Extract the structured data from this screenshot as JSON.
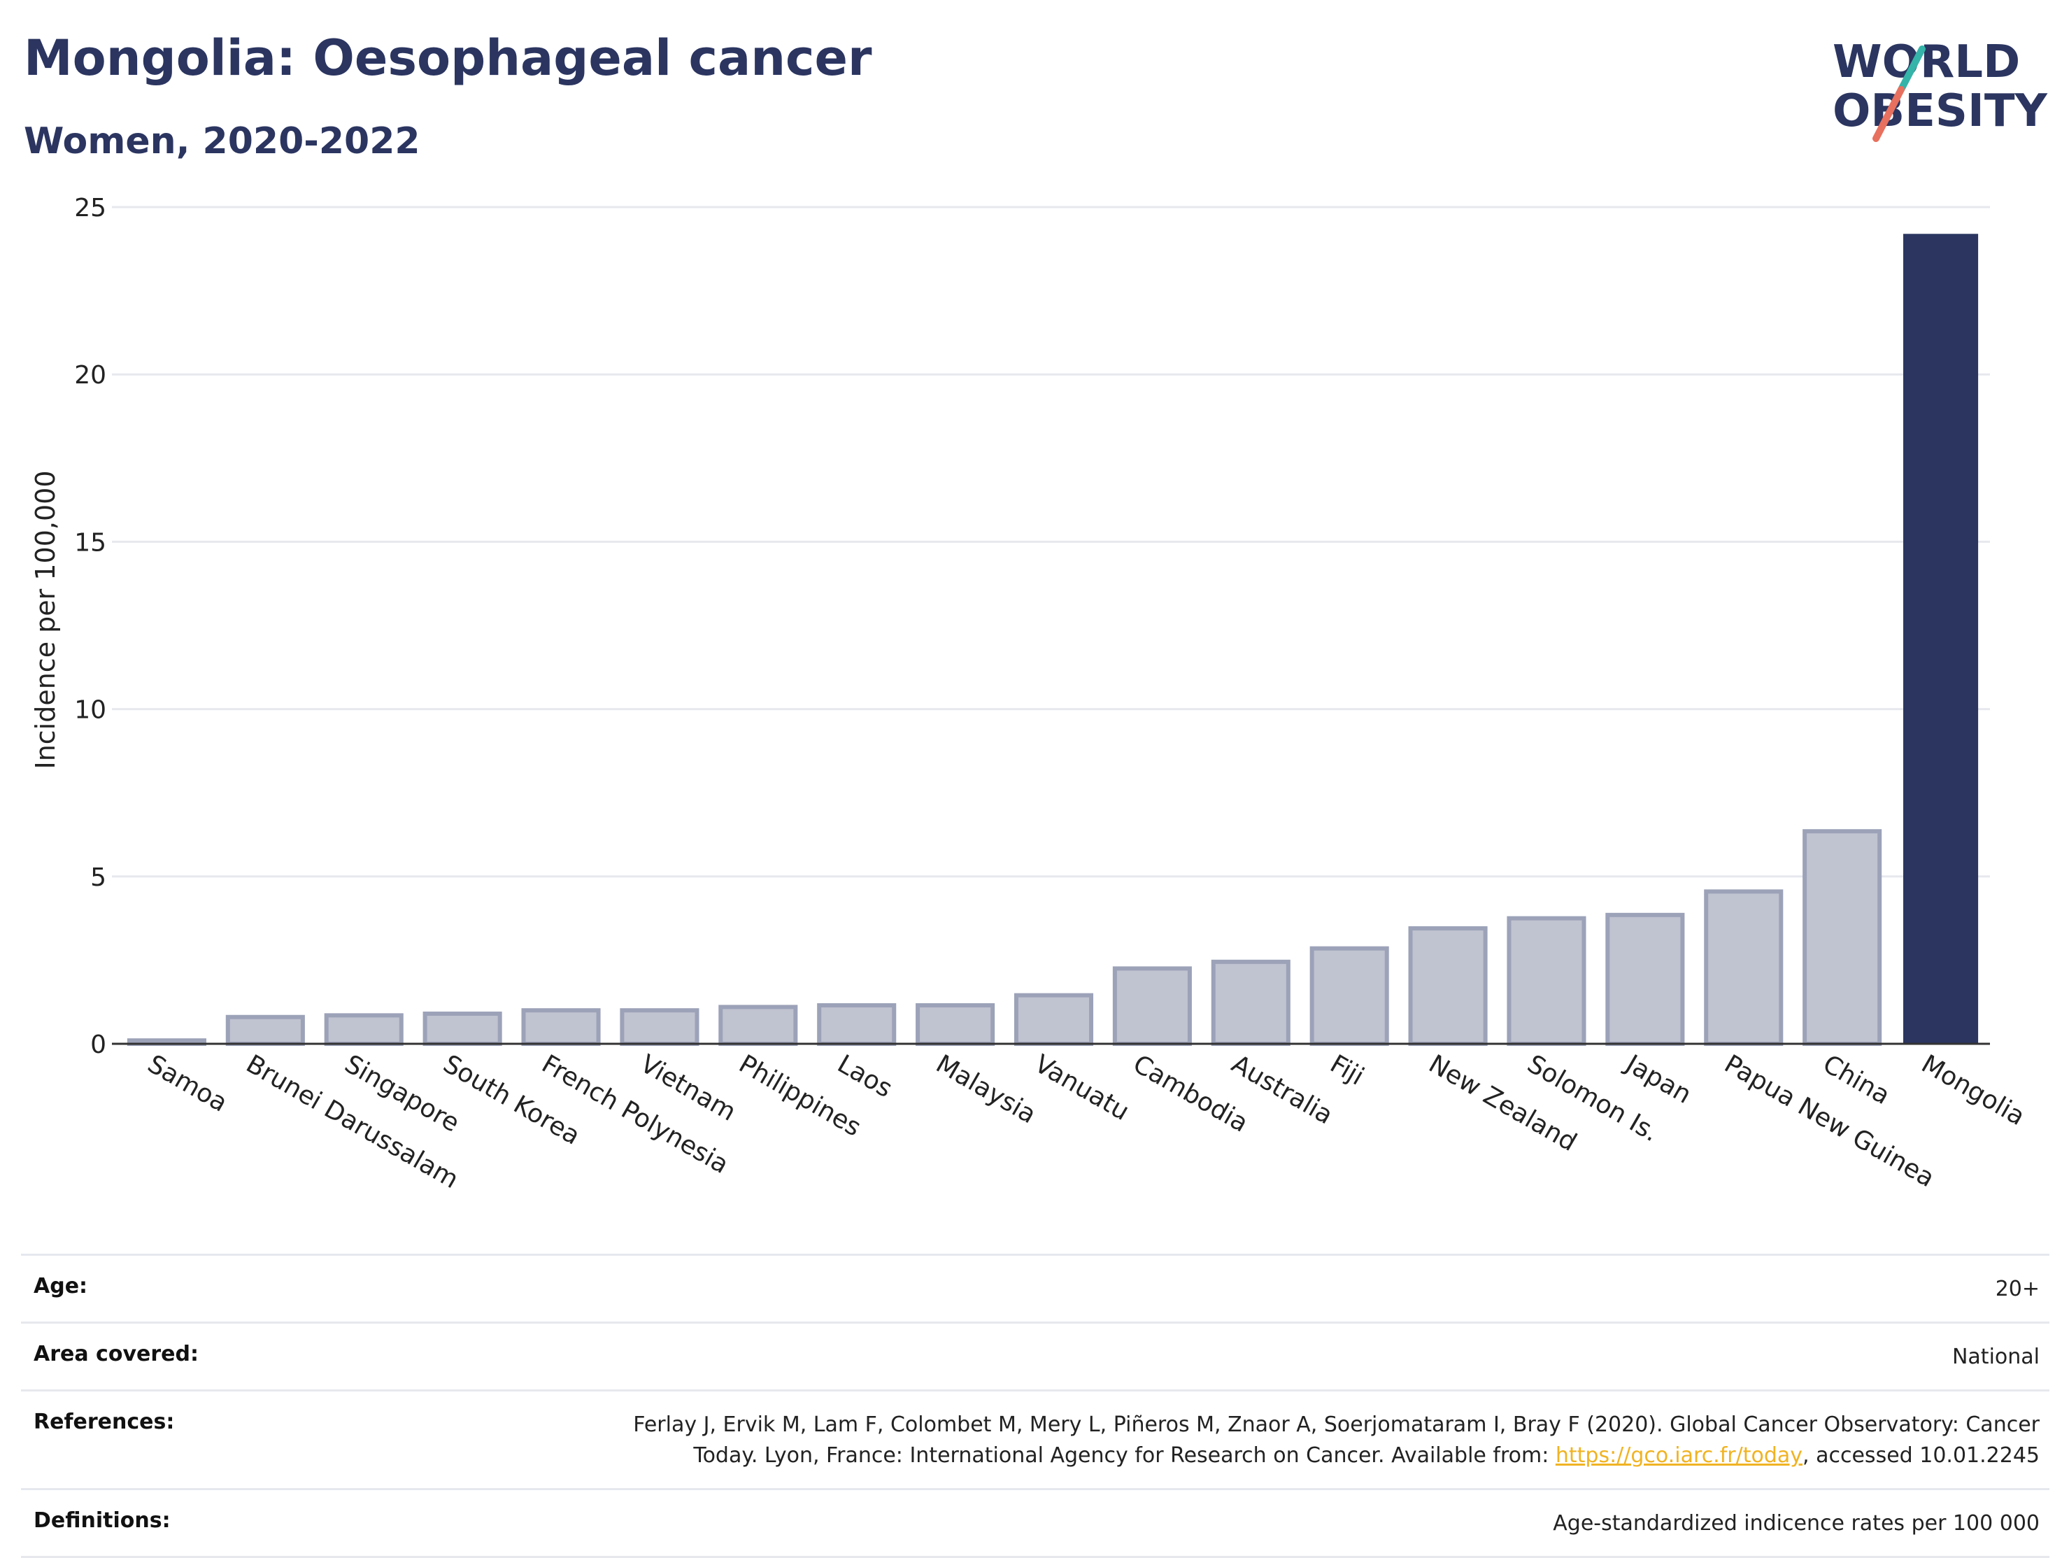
{
  "header": {
    "title": "Mongolia: Oesophageal cancer",
    "subtitle": "Women, 2020-2022"
  },
  "logo": {
    "line1": "WORLD",
    "line2": "OBESITY",
    "icon": "world-obesity-slash-logo"
  },
  "colors": {
    "highlight_bar": "#2b3560",
    "other_bar_fill": "#c0c3d0",
    "other_bar_stroke": "#9ca2b8",
    "title": "#2b3560",
    "link": "#f0b323"
  },
  "chart_data": {
    "type": "bar",
    "ylabel": "Incidence per 100,000",
    "ylim": [
      0,
      25
    ],
    "yticks": [
      0,
      5,
      10,
      15,
      20,
      25
    ],
    "grid": true,
    "highlight": "Mongolia",
    "categories": [
      "Samoa",
      "Brunei Darussalam",
      "Singapore",
      "South Korea",
      "French Polynesia",
      "Vietnam",
      "Philippines",
      "Laos",
      "Malaysia",
      "Vanuatu",
      "Cambodia",
      "Australia",
      "Fiji",
      "New Zealand",
      "Solomon Is.",
      "Japan",
      "Papua New Guinea",
      "China",
      "Mongolia"
    ],
    "values": [
      0.1,
      0.8,
      0.85,
      0.9,
      1.0,
      1.0,
      1.1,
      1.15,
      1.15,
      1.45,
      2.25,
      2.45,
      2.85,
      3.45,
      3.75,
      3.85,
      4.55,
      6.35,
      24.2
    ]
  },
  "meta": {
    "age_label": "Age:",
    "age_value": "20+",
    "area_label": "Area covered:",
    "area_value": "National",
    "references_label": "References:",
    "references_value_line1": "Ferlay J, Ervik M, Lam F, Colombet M, Mery L, Piñeros M, Znaor A, Soerjomataram I, Bray F (2020). Global Cancer Observatory: Cancer",
    "references_value_line2_pre": "Today. Lyon, France: International Agency for Research on Cancer. Available from: ",
    "references_link": "https://gco.iarc.fr/today",
    "references_value_line2_post": ", accessed 10.01.2245",
    "definitions_label": "Definitions:",
    "definitions_value": "Age-standardized indicence rates per 100 000"
  }
}
